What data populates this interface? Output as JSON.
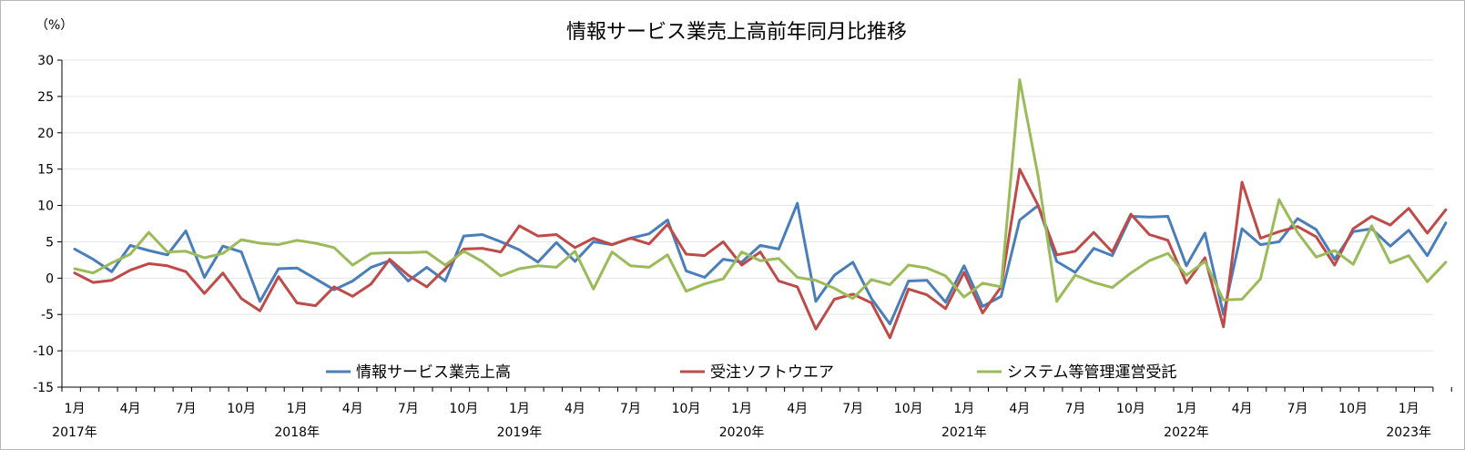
{
  "chart_data": {
    "type": "line",
    "title": "情報サービス業売上高前年同月比推移",
    "yunit": "（%）",
    "ylim": [
      -15,
      30
    ],
    "yticks": [
      30,
      25,
      20,
      15,
      10,
      5,
      0,
      -5,
      -10,
      -15
    ],
    "grid": true,
    "legend_position": "bottom-inside",
    "x_month_labels": [
      "1月",
      "4月",
      "7月",
      "10月",
      "1月",
      "4月",
      "7月",
      "10月",
      "1月",
      "4月",
      "7月",
      "10月",
      "1月",
      "4月",
      "7月",
      "10月",
      "1月",
      "4月",
      "7月",
      "10月",
      "1月",
      "4月",
      "7月",
      "10月",
      "1月"
    ],
    "x_year_labels": [
      "2017年",
      "2018年",
      "2019年",
      "2020年",
      "2021年",
      "2022年",
      "2023年"
    ],
    "series": [
      {
        "name": "情報サービス業売上高",
        "color": "#4a7ebb",
        "values": [
          4.0,
          2.6,
          0.9,
          4.5,
          3.8,
          3.2,
          6.5,
          0.1,
          4.4,
          3.6,
          -3.2,
          1.3,
          1.4,
          -0.1,
          -1.6,
          -0.4,
          1.5,
          2.4,
          -0.4,
          1.5,
          -0.4,
          5.8,
          6.0,
          5.0,
          3.9,
          2.2,
          4.9,
          2.3,
          5.0,
          4.6,
          5.5,
          6.1,
          8.0,
          1.0,
          0.1,
          2.6,
          2.2,
          4.5,
          4.0,
          10.3,
          -3.2,
          0.4,
          2.2,
          -2.8,
          -6.3,
          -0.4,
          -0.3,
          -3.3,
          1.7,
          -3.9,
          -2.5,
          8.0,
          10.0,
          2.3,
          0.8,
          4.1,
          3.1,
          8.5,
          8.4,
          8.5,
          1.7,
          6.2,
          -5.0,
          6.8,
          4.6,
          5.0,
          8.2,
          6.7,
          2.6,
          6.4,
          6.8,
          4.4,
          6.6,
          3.1,
          7.6
        ]
      },
      {
        "name": "受注ソフトウエア",
        "color": "#be4b48",
        "values": [
          0.7,
          -0.6,
          -0.3,
          1.1,
          2.0,
          1.7,
          0.9,
          -2.1,
          0.7,
          -2.8,
          -4.5,
          0.2,
          -3.4,
          -3.8,
          -1.2,
          -2.5,
          -0.8,
          2.6,
          0.4,
          -1.2,
          1.3,
          4.0,
          4.1,
          3.6,
          7.2,
          5.8,
          6.0,
          4.2,
          5.5,
          4.6,
          5.5,
          4.7,
          7.4,
          3.3,
          3.1,
          5.0,
          1.8,
          3.6,
          -0.4,
          -1.2,
          -7.0,
          -2.9,
          -2.2,
          -3.4,
          -8.2,
          -1.5,
          -2.3,
          -4.2,
          0.8,
          -4.8,
          -1.2,
          15.0,
          10.0,
          3.2,
          3.7,
          6.3,
          3.6,
          8.8,
          6.0,
          5.2,
          -0.7,
          2.8,
          -6.7,
          13.2,
          5.5,
          6.4,
          7.1,
          5.7,
          1.8,
          6.8,
          8.5,
          7.3,
          9.6,
          6.2,
          9.4
        ]
      },
      {
        "name": "システム等管理運営受託",
        "color": "#9bbb59",
        "values": [
          1.3,
          0.7,
          2.1,
          3.3,
          6.3,
          3.6,
          3.7,
          2.8,
          3.4,
          5.3,
          4.8,
          4.6,
          5.2,
          4.8,
          4.2,
          1.8,
          3.4,
          3.5,
          3.5,
          3.6,
          1.8,
          3.7,
          2.3,
          0.3,
          1.3,
          1.7,
          1.5,
          3.7,
          -1.5,
          3.6,
          1.7,
          1.5,
          3.2,
          -1.8,
          -0.8,
          -0.1,
          3.6,
          2.4,
          2.7,
          0.1,
          -0.3,
          -1.4,
          -2.8,
          -0.2,
          -0.9,
          1.8,
          1.4,
          0.3,
          -2.6,
          -0.7,
          -1.2,
          27.3,
          14.0,
          -3.2,
          0.4,
          -0.6,
          -1.3,
          0.7,
          2.4,
          3.4,
          0.4,
          2.3,
          -3.0,
          -2.9,
          -0.1,
          10.8,
          6.3,
          2.9,
          3.8,
          1.9,
          7.2,
          2.1,
          3.1,
          -0.5,
          2.2
        ]
      }
    ]
  }
}
